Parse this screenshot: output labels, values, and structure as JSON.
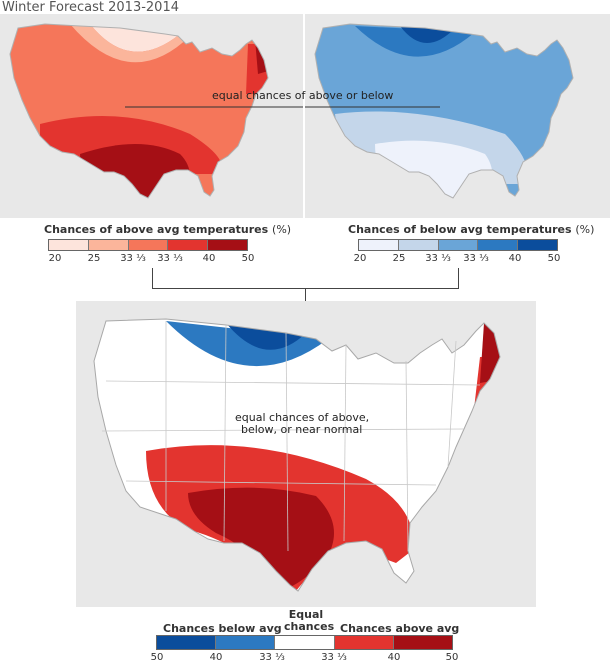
{
  "title": "Winter Forecast 2013-2014",
  "colors": {
    "above": [
      "#fde4dc",
      "#fbb59b",
      "#f5765a",
      "#e3342f",
      "#a50f15"
    ],
    "below": [
      "#eef2fb",
      "#c4d6ea",
      "#6aa5d7",
      "#2c79c1",
      "#0b4d9c"
    ],
    "equal": "#ffffff",
    "land_gray": "#e0e0e0",
    "border_gray": "#cfcfcf"
  },
  "map_above": {
    "annotation": "equal chances of above or below"
  },
  "map_below": {},
  "legend_above": {
    "title": "Chances of above avg temperatures",
    "unit": "(%)",
    "ticks": [
      "20",
      "25",
      "33 ⅓",
      "33 ⅓",
      "40",
      "50"
    ]
  },
  "legend_below": {
    "title": "Chances of below avg temperatures",
    "unit": "(%)",
    "ticks": [
      "20",
      "25",
      "33 ⅓",
      "33 ⅓",
      "40",
      "50"
    ]
  },
  "map_combined": {
    "annotation_line1": "equal chances of above,",
    "annotation_line2": "below, or near normal"
  },
  "legend_combined": {
    "label_below": "Chances below avg",
    "label_equal_line1": "Equal",
    "label_equal_line2": "chances",
    "label_above": "Chances above avg",
    "ticks": [
      "50",
      "40",
      "33 ⅓",
      "33 ⅓",
      "40",
      "50"
    ]
  }
}
